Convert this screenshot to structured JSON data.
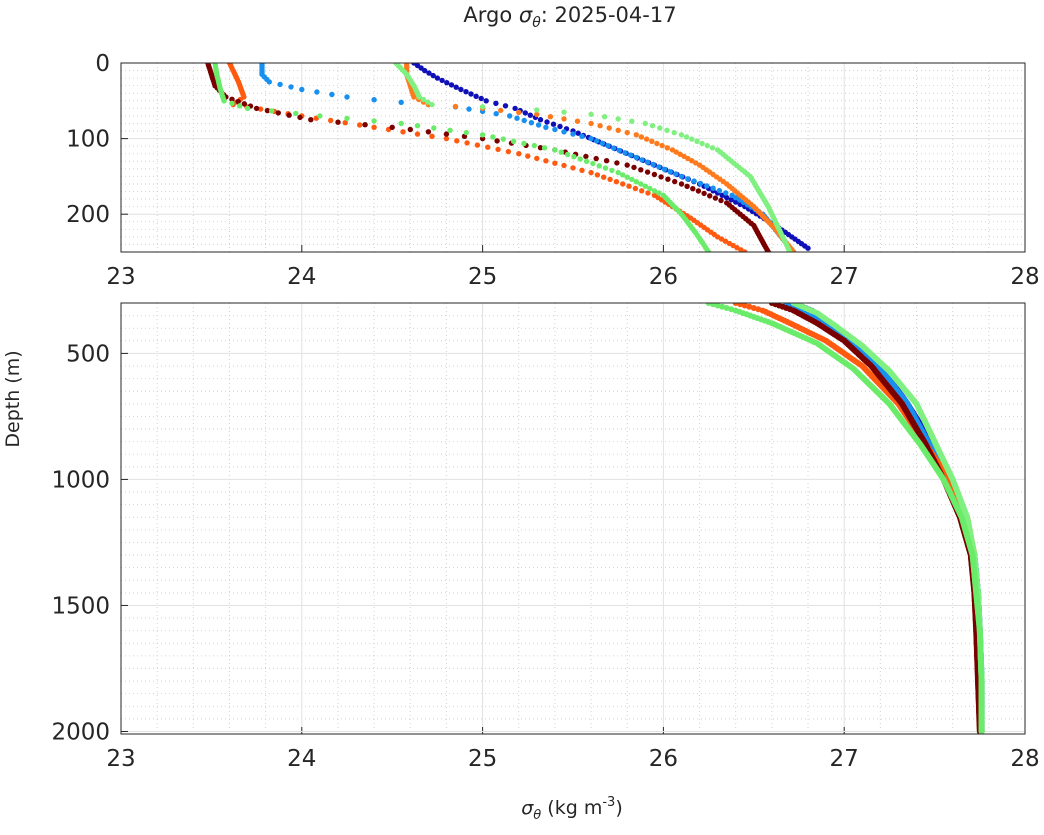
{
  "chart_data": {
    "type": "scatter",
    "title": {
      "prefix": "Argo ",
      "symbol": "σ",
      "subscript": "θ",
      "suffix": ": 2025-04-17"
    },
    "xlabel": {
      "symbol": "σ",
      "subscript": "θ",
      "units_prefix": " (kg m",
      "units_exponent": "-3",
      "units_suffix": ")"
    },
    "ylabel": "Depth (m)",
    "grid": true,
    "minor_grid": true,
    "panels": [
      {
        "xlim": [
          23,
          28
        ],
        "ylim": [
          0,
          250
        ],
        "y_reversed": true,
        "xticks": [
          "23",
          "24",
          "25",
          "26",
          "27",
          "28"
        ],
        "yticks": [
          {
            "v": 0,
            "label": "0"
          },
          {
            "v": 100,
            "label": "100"
          },
          {
            "v": 200,
            "label": "200"
          }
        ]
      },
      {
        "xlim": [
          23,
          28
        ],
        "ylim": [
          300,
          2010
        ],
        "y_reversed": true,
        "xticks": [
          "23",
          "24",
          "25",
          "26",
          "27",
          "28"
        ],
        "yticks": [
          {
            "v": 500,
            "label": "500"
          },
          {
            "v": 1000,
            "label": "1000"
          },
          {
            "v": 1500,
            "label": "1500"
          },
          {
            "v": 2000,
            "label": "2000"
          }
        ]
      }
    ],
    "series": [
      {
        "color": "#1010b8",
        "points": [
          [
            24.62,
            0
          ],
          [
            24.68,
            10
          ],
          [
            24.75,
            20
          ],
          [
            24.88,
            35
          ],
          [
            25.02,
            50
          ],
          [
            25.18,
            60
          ],
          [
            25.32,
            75
          ],
          [
            25.5,
            90
          ],
          [
            25.7,
            110
          ],
          [
            25.95,
            135
          ],
          [
            26.2,
            160
          ],
          [
            26.45,
            190
          ],
          [
            26.62,
            215
          ],
          [
            26.8,
            245
          ],
          [
            26.72,
            300
          ],
          [
            26.82,
            330
          ],
          [
            26.92,
            380
          ],
          [
            27.05,
            450
          ],
          [
            27.2,
            550
          ],
          [
            27.35,
            700
          ],
          [
            27.48,
            850
          ],
          [
            27.58,
            1000
          ],
          [
            27.66,
            1150
          ],
          [
            27.72,
            1300
          ],
          [
            27.74,
            1450
          ],
          [
            27.75,
            1600
          ],
          [
            27.76,
            1800
          ],
          [
            27.76,
            2000
          ]
        ]
      },
      {
        "color": "#1890f0",
        "points": [
          [
            23.78,
            0
          ],
          [
            23.78,
            15
          ],
          [
            23.82,
            25
          ],
          [
            24.0,
            35
          ],
          [
            24.25,
            45
          ],
          [
            24.55,
            52
          ],
          [
            24.85,
            58
          ],
          [
            25.15,
            70
          ],
          [
            25.35,
            85
          ],
          [
            25.6,
            100
          ],
          [
            25.85,
            125
          ],
          [
            26.1,
            150
          ],
          [
            26.38,
            175
          ],
          [
            26.55,
            200
          ],
          [
            26.72,
            250
          ],
          [
            26.68,
            300
          ],
          [
            26.8,
            340
          ],
          [
            26.9,
            390
          ],
          [
            27.05,
            460
          ],
          [
            27.2,
            560
          ],
          [
            27.35,
            700
          ],
          [
            27.47,
            860
          ],
          [
            27.57,
            1000
          ],
          [
            27.66,
            1150
          ],
          [
            27.72,
            1300
          ],
          [
            27.74,
            1450
          ],
          [
            27.75,
            1600
          ],
          [
            27.76,
            1800
          ],
          [
            27.76,
            2000
          ]
        ]
      },
      {
        "color": "#ff5a10",
        "points": [
          [
            23.6,
            0
          ],
          [
            23.62,
            10
          ],
          [
            23.65,
            25
          ],
          [
            23.68,
            45
          ],
          [
            23.62,
            55
          ],
          [
            24.0,
            70
          ],
          [
            24.4,
            85
          ],
          [
            24.8,
            100
          ],
          [
            25.2,
            120
          ],
          [
            25.6,
            145
          ],
          [
            25.95,
            175
          ],
          [
            26.15,
            205
          ],
          [
            26.3,
            230
          ],
          [
            26.45,
            250
          ],
          [
            26.4,
            300
          ],
          [
            26.55,
            330
          ],
          [
            26.7,
            380
          ],
          [
            26.9,
            450
          ],
          [
            27.1,
            550
          ],
          [
            27.3,
            700
          ],
          [
            27.45,
            860
          ],
          [
            27.58,
            1000
          ],
          [
            27.68,
            1150
          ],
          [
            27.72,
            1300
          ],
          [
            27.73,
            1400
          ],
          [
            27.74,
            1500
          ],
          [
            27.75,
            1600
          ],
          [
            27.76,
            2000
          ]
        ]
      },
      {
        "color": "#ff7a1c",
        "points": [
          [
            24.58,
            0
          ],
          [
            24.58,
            15
          ],
          [
            24.6,
            30
          ],
          [
            24.62,
            45
          ],
          [
            24.7,
            55
          ],
          [
            25.0,
            60
          ],
          [
            25.3,
            68
          ],
          [
            25.6,
            80
          ],
          [
            25.85,
            95
          ],
          [
            26.05,
            115
          ],
          [
            26.2,
            135
          ],
          [
            26.35,
            160
          ],
          [
            26.5,
            190
          ],
          [
            26.62,
            220
          ],
          [
            26.72,
            250
          ]
        ]
      },
      {
        "color": "#7a0000",
        "points": [
          [
            23.48,
            0
          ],
          [
            23.5,
            15
          ],
          [
            23.52,
            30
          ],
          [
            23.58,
            45
          ],
          [
            23.75,
            60
          ],
          [
            24.05,
            75
          ],
          [
            24.5,
            85
          ],
          [
            25.0,
            100
          ],
          [
            25.4,
            115
          ],
          [
            25.8,
            135
          ],
          [
            26.1,
            160
          ],
          [
            26.35,
            185
          ],
          [
            26.5,
            215
          ],
          [
            26.58,
            250
          ],
          [
            26.6,
            300
          ],
          [
            26.72,
            330
          ],
          [
            26.85,
            380
          ],
          [
            27.0,
            450
          ],
          [
            27.15,
            550
          ],
          [
            27.32,
            700
          ],
          [
            27.45,
            860
          ],
          [
            27.55,
            1000
          ],
          [
            27.64,
            1150
          ],
          [
            27.7,
            1300
          ],
          [
            27.72,
            1450
          ],
          [
            27.73,
            1600
          ],
          [
            27.74,
            1800
          ],
          [
            27.75,
            2000
          ]
        ]
      },
      {
        "color": "#80f080",
        "points": [
          [
            24.52,
            0
          ],
          [
            24.58,
            15
          ],
          [
            24.62,
            30
          ],
          [
            24.65,
            45
          ],
          [
            24.72,
            55
          ],
          [
            25.0,
            58
          ],
          [
            25.3,
            62
          ],
          [
            25.6,
            68
          ],
          [
            25.9,
            80
          ],
          [
            26.1,
            95
          ],
          [
            26.3,
            115
          ],
          [
            26.48,
            150
          ],
          [
            26.58,
            190
          ],
          [
            26.65,
            225
          ],
          [
            26.7,
            250
          ],
          [
            26.72,
            300
          ],
          [
            26.85,
            340
          ],
          [
            26.95,
            390
          ],
          [
            27.1,
            470
          ],
          [
            27.25,
            570
          ],
          [
            27.4,
            700
          ],
          [
            27.5,
            850
          ],
          [
            27.6,
            1000
          ],
          [
            27.68,
            1150
          ],
          [
            27.72,
            1300
          ],
          [
            27.74,
            1450
          ],
          [
            27.75,
            1600
          ],
          [
            27.76,
            1800
          ],
          [
            27.76,
            2000
          ]
        ]
      },
      {
        "color": "#6aec6a",
        "points": [
          [
            23.52,
            0
          ],
          [
            23.53,
            15
          ],
          [
            23.55,
            35
          ],
          [
            23.57,
            50
          ],
          [
            23.7,
            60
          ],
          [
            24.1,
            70
          ],
          [
            24.55,
            80
          ],
          [
            25.0,
            95
          ],
          [
            25.4,
            115
          ],
          [
            25.75,
            145
          ],
          [
            26.0,
            175
          ],
          [
            26.1,
            200
          ],
          [
            26.18,
            225
          ],
          [
            26.25,
            250
          ],
          [
            26.25,
            300
          ],
          [
            26.4,
            330
          ],
          [
            26.6,
            380
          ],
          [
            26.85,
            460
          ],
          [
            27.05,
            560
          ],
          [
            27.25,
            700
          ],
          [
            27.42,
            860
          ],
          [
            27.55,
            1000
          ],
          [
            27.65,
            1150
          ],
          [
            27.71,
            1300
          ],
          [
            27.73,
            1450
          ],
          [
            27.75,
            1600
          ],
          [
            27.76,
            1800
          ],
          [
            27.76,
            2000
          ]
        ]
      }
    ]
  }
}
